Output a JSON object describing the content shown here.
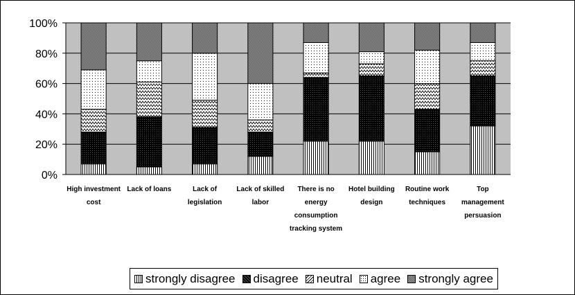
{
  "chart_data": {
    "type": "bar",
    "stacked": true,
    "percent_stacked": true,
    "categories": [
      [
        "High investment",
        "cost"
      ],
      [
        "Lack of loans"
      ],
      [
        "Lack of",
        "legislation"
      ],
      [
        "Lack of skilled",
        "labor"
      ],
      [
        "There is no",
        "energy",
        "consumption",
        "tracking system"
      ],
      [
        "Hotel building",
        "design"
      ],
      [
        "Routine work",
        "techniques"
      ],
      [
        "Top",
        "management",
        "persuasion"
      ]
    ],
    "series": [
      {
        "name": "strongly disagree",
        "values": [
          7,
          5,
          7,
          12,
          22,
          22,
          15,
          32
        ]
      },
      {
        "name": "disagree",
        "values": [
          21,
          33,
          24,
          16,
          42,
          43,
          28,
          33
        ]
      },
      {
        "name": "neutral",
        "values": [
          15,
          23,
          18,
          8,
          3,
          8,
          17,
          10
        ]
      },
      {
        "name": "agree",
        "values": [
          26,
          14,
          31,
          24,
          20,
          8,
          22,
          12
        ]
      },
      {
        "name": "strongly agree",
        "values": [
          31,
          25,
          20,
          40,
          13,
          19,
          18,
          13
        ]
      }
    ],
    "y_ticks": [
      "0%",
      "20%",
      "40%",
      "60%",
      "80%",
      "100%"
    ],
    "ylim": [
      0,
      100
    ],
    "grid": true,
    "legend_position": "bottom",
    "colors": {
      "plot_background": "#c0c0c0",
      "gridline": "#000000"
    }
  }
}
